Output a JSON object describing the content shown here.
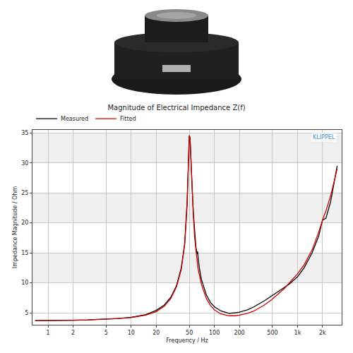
{
  "chart_data": {
    "type": "line",
    "title": "Magnitude of Electrical Impedance Z(f)",
    "x_label": "Frequency / Hz",
    "y_label": "Impedance Magnitude / Ohm",
    "annotations": [
      "KLIPPEL"
    ],
    "log": "x",
    "grid": true,
    "legend": "top-left",
    "x": [
      0.7,
      1,
      2,
      3,
      5,
      7,
      10,
      15,
      20,
      25,
      30,
      35,
      40,
      44,
      47,
      49,
      50,
      51,
      52,
      54,
      56,
      58,
      60,
      62,
      63,
      64,
      66,
      70,
      80,
      90,
      100,
      120,
      150,
      180,
      200,
      250,
      300,
      400,
      500,
      700,
      800,
      1000,
      1200,
      1500,
      1800,
      2000,
      2100,
      2200,
      2500,
      3000
    ],
    "series": [
      {
        "name": "Measured",
        "color": "#000000",
        "line_style": "solid",
        "values": [
          3.7,
          3.7,
          3.75,
          3.8,
          3.9,
          4.05,
          4.25,
          4.7,
          5.4,
          6.3,
          7.6,
          9.5,
          12.5,
          16.5,
          23,
          30,
          34.5,
          34.2,
          31,
          26,
          21.5,
          18.5,
          16,
          14.8,
          15.2,
          14.0,
          12.5,
          10.5,
          8.0,
          6.7,
          6.0,
          5.3,
          4.9,
          5.0,
          5.1,
          5.5,
          6.0,
          7.0,
          7.9,
          9.3,
          9.8,
          11,
          12.5,
          15,
          17.8,
          20.5,
          20.6,
          20.8,
          23.5,
          29.5
        ]
      },
      {
        "name": "Fitted",
        "color": "#cc0000",
        "line_style": "solid",
        "values": [
          3.7,
          3.7,
          3.75,
          3.8,
          3.9,
          4.05,
          4.2,
          4.6,
          5.2,
          6.1,
          7.4,
          9.3,
          12.2,
          16.5,
          23.5,
          30,
          34.6,
          34.2,
          31,
          25.5,
          21,
          17.5,
          15.2,
          13.5,
          12.8,
          12.2,
          11.2,
          9.7,
          7.4,
          6.2,
          5.5,
          4.8,
          4.5,
          4.5,
          4.6,
          4.9,
          5.3,
          6.3,
          7.3,
          9.1,
          10,
          11.5,
          13,
          15.5,
          18.5,
          20.5,
          21.3,
          22,
          24.5,
          29
        ]
      }
    ],
    "xlim": [
      0.65,
      3400
    ],
    "xticks": [
      1,
      2,
      5,
      10,
      20,
      50,
      100,
      200,
      500,
      {
        "value": 1000,
        "label": "1k"
      },
      {
        "value": 2000,
        "label": "2k"
      }
    ],
    "ylim": [
      3,
      35.5
    ],
    "yticks": [
      5,
      10,
      15,
      20,
      25,
      30,
      35
    ]
  }
}
